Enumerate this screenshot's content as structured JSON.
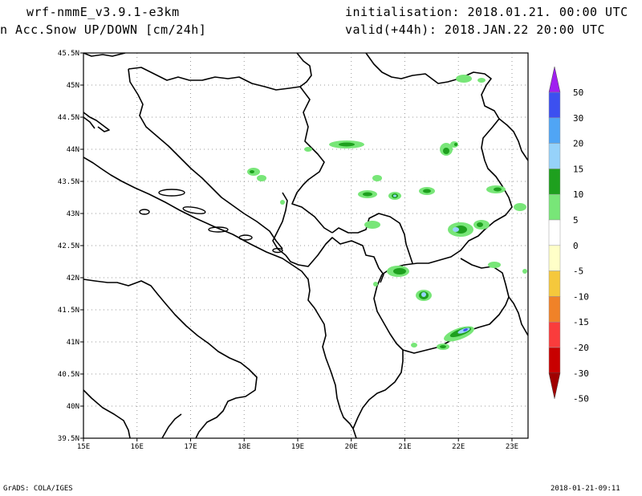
{
  "header": {
    "model": "wrf-nmmE_v3.9.1-e3km",
    "variable": "n Acc.Snow UP/DOWN [cm/24h]",
    "initialisation": "initialisation: 2018.01.21.  00:00 UTC",
    "valid": "valid(+44h): 2018.JAN.22 20:00 UTC"
  },
  "map": {
    "lat_labels": [
      "45.5N",
      "45N",
      "44.5N",
      "44N",
      "43.5N",
      "43N",
      "42.5N",
      "42N",
      "41.5N",
      "41N",
      "40.5N",
      "40N",
      "39.5N"
    ],
    "lon_labels": [
      "15E",
      "16E",
      "17E",
      "18E",
      "19E",
      "20E",
      "21E",
      "22E",
      "23E"
    ],
    "lat_range": [
      39.5,
      45.5
    ],
    "lon_range": [
      15,
      23.3
    ],
    "grid": true
  },
  "legend": {
    "labels": [
      "50",
      "30",
      "20",
      "15",
      "10",
      "5",
      "0",
      "-5",
      "-10",
      "-15",
      "-20",
      "-30",
      "-50"
    ],
    "colors": [
      "#a020f0",
      "#3c50f0",
      "#50a5f5",
      "#96d2fa",
      "#1ea01e",
      "#78e678",
      "#ffffff",
      "#ffffc8",
      "#f5c83c",
      "#f08228",
      "#fa3c3c",
      "#c80000",
      "#a00000"
    ]
  },
  "footer": {
    "credit": "GrADS: COLA/IGES",
    "timestamp": "2018-01-21-09:11"
  }
}
